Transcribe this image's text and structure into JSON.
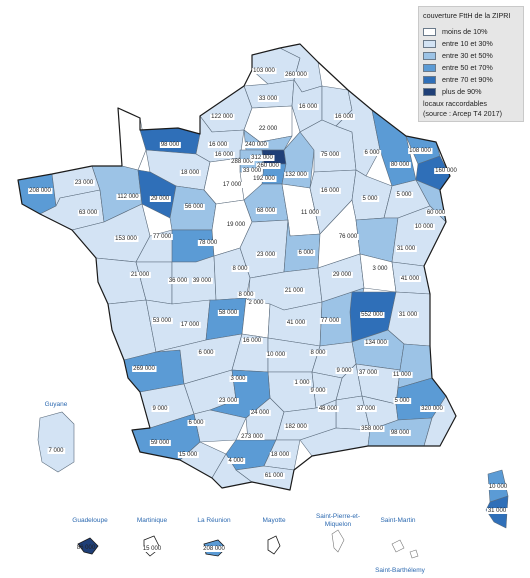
{
  "legend": {
    "title": "couverture FttH de la ZIPRI",
    "classes": [
      {
        "label": "moins de 10%",
        "color": "#ffffff"
      },
      {
        "label": "entre 10 et 30%",
        "color": "#d3e3f4"
      },
      {
        "label": "entre 30 et 50%",
        "color": "#9cc3e6"
      },
      {
        "label": "entre 50 et 70%",
        "color": "#5b9bd5"
      },
      {
        "label": "entre 70 et 90%",
        "color": "#2f6fb8"
      },
      {
        "label": "plus de 90%",
        "color": "#1f3f77"
      }
    ],
    "note1": "locaux raccordables",
    "note2": "(source : Arcep T4 2017)"
  },
  "values": {
    "pdc": "103 000",
    "nord": "260 000",
    "somme": "33 000",
    "aisne": "16 000",
    "ardennes": "16 000",
    "smaritime": "122 000",
    "oise": "22 000",
    "manche": "16 000",
    "calvados": "98 000",
    "eure": "16 000",
    "paris": "240 000",
    "idf1": "288 000",
    "idf2": "312 000",
    "idf3": "260 000",
    "idf4": "33 000",
    "idf5": "192 000",
    "marne": "75 000",
    "meuse": "6 000",
    "moselle": "80 000",
    "brhin": "108 000",
    "hrhin": "160 000",
    "finistere": "208 000",
    "cotes": "23 000",
    "morbihan": "63 000",
    "ille": "112 000",
    "orne": "18 000",
    "sarthe": "29 000",
    "eloir": "17 000",
    "loiret": "68 000",
    "yonne": "11 000",
    "aube": "132 000",
    "hmarne": "16 000",
    "vosges": "5 000",
    "mmoselle": "60 000",
    "hsaone": "5 000",
    "mayenne": "56 000",
    "maine": "78 000",
    "laine": "153 000",
    "latl": "77 000",
    "indre": "19 000",
    "cher": "8 000",
    "nievre": "23 000",
    "cote_or": "6 000",
    "jura": "76 000",
    "doubs": "31 000",
    "tbelfort": "10 000",
    "vendee": "21 000",
    "dsevres": "36 000",
    "vienne": "39 000",
    "creuse": "8 000",
    "allier": "21 000",
    "saone_loire": "29 000",
    "ain": "3 000",
    "hsavoie": "41 000",
    "cmaritime": "53 000",
    "charente": "17 000",
    "hvienne": "58 000",
    "correze": "2 000",
    "puy": "41 000",
    "loire": "77 000",
    "rhone": "552 000",
    "savoie": "31 000",
    "isere": "134 000",
    "gironde": "269 000",
    "dordogne": "6 000",
    "lot": "16 000",
    "cantal": "10 000",
    "hloire": "8 000",
    "ardeche": "9 000",
    "drome": "37 000",
    "hautesalpes": "11 000",
    "landes": "9 000",
    "lotgaronne": "3 000",
    "aveyron": "1 000",
    "lozere": "9 000",
    "gard": "37 000",
    "vaucluse": "5 000",
    "ahp": "320 000",
    "tarngar": "23 000",
    "tarn": "24 000",
    "herault": "48 000",
    "bdr": "182 000",
    "var": "358 000",
    "am": "98 000",
    "gers": "6 000",
    "hgaronne": "273 000",
    "aude": "18 000",
    "pa": "59 000",
    "hp": "15 000",
    "ariege": "4 000",
    "po": "61 000",
    "hcorse": "10 000",
    "csud": "31 000",
    "guyane": "7 000",
    "guadeloupe": "86 000",
    "martinique": "15 000",
    "reunion": "208 000"
  },
  "overseas": {
    "guyane": "Guyane",
    "guadeloupe": "Guadeloupe",
    "martinique": "Martinique",
    "reunion": "La Réunion",
    "mayotte": "Mayotte",
    "spm1": "Saint-Pierre-et-",
    "spm2": "Miquelon",
    "smartin": "Saint-Martin",
    "sbarth": "Saint-Barthélemy"
  }
}
